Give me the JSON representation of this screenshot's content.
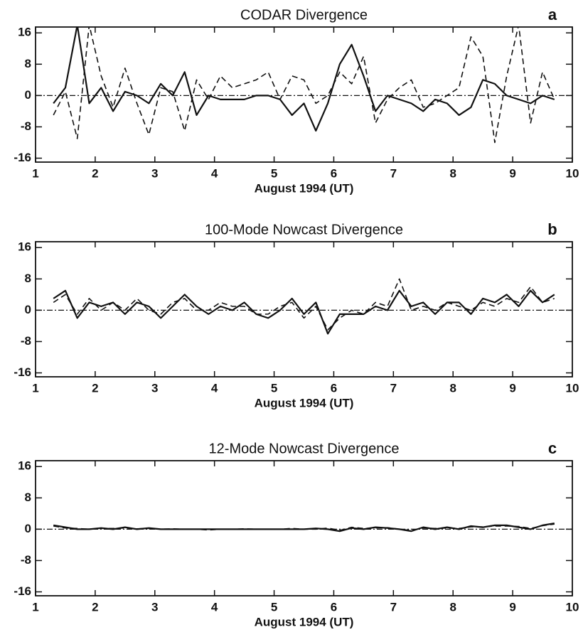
{
  "chart_data": [
    {
      "type": "line",
      "title": "CODAR Divergence",
      "panel_label": "a",
      "x_label": "August 1994 (UT)",
      "xlim": [
        1,
        10
      ],
      "xticks": [
        1,
        2,
        3,
        4,
        5,
        6,
        7,
        8,
        9,
        10
      ],
      "ylim": [
        -17,
        17.5
      ],
      "yticks": [
        16,
        8,
        0,
        -8,
        -16
      ],
      "hline": 0,
      "x": [
        1.3,
        1.5,
        1.7,
        1.9,
        2.1,
        2.3,
        2.5,
        2.7,
        2.9,
        3.1,
        3.3,
        3.5,
        3.7,
        3.9,
        4.1,
        4.3,
        4.5,
        4.7,
        4.9,
        5.1,
        5.3,
        5.5,
        5.7,
        5.9,
        6.1,
        6.3,
        6.5,
        6.7,
        6.9,
        7.1,
        7.3,
        7.5,
        7.7,
        7.9,
        8.1,
        8.3,
        8.5,
        8.7,
        8.9,
        9.1,
        9.3,
        9.5,
        9.7
      ],
      "series": [
        {
          "color": "#111111",
          "style": "solid",
          "values": [
            -2,
            2,
            18,
            -2,
            2,
            -4,
            1,
            0,
            -2,
            3,
            0,
            6,
            -5,
            0,
            -1,
            -1,
            -1,
            0,
            0,
            -1,
            -5,
            -2,
            -9,
            -2,
            8,
            13,
            5,
            -4,
            0,
            -1,
            -2,
            -4,
            -1,
            -2,
            -5,
            -3,
            4,
            3,
            0,
            -1,
            -2,
            0,
            -1
          ]
        },
        {
          "color": "#111111",
          "style": "dashed",
          "values": [
            -5,
            1,
            -11,
            18,
            5,
            -3,
            7,
            -2,
            -10,
            2,
            1,
            -9,
            4,
            -1,
            5,
            2,
            3,
            4,
            6,
            -1,
            5,
            4,
            -2,
            0,
            6,
            3,
            10,
            -7,
            -1,
            2,
            4,
            -3,
            -2,
            0,
            2,
            15,
            10,
            -12,
            5,
            18,
            -7,
            6,
            -1
          ]
        }
      ]
    },
    {
      "type": "line",
      "title": "100-Mode Nowcast Divergence",
      "panel_label": "b",
      "x_label": "August 1994 (UT)",
      "xlim": [
        1,
        10
      ],
      "xticks": [
        1,
        2,
        3,
        4,
        5,
        6,
        7,
        8,
        9,
        10
      ],
      "ylim": [
        -17,
        17.5
      ],
      "yticks": [
        16,
        8,
        0,
        -8,
        -16
      ],
      "hline": 0,
      "x": [
        1.3,
        1.5,
        1.7,
        1.9,
        2.1,
        2.3,
        2.5,
        2.7,
        2.9,
        3.1,
        3.3,
        3.5,
        3.7,
        3.9,
        4.1,
        4.3,
        4.5,
        4.7,
        4.9,
        5.1,
        5.3,
        5.5,
        5.7,
        5.9,
        6.1,
        6.3,
        6.5,
        6.7,
        6.9,
        7.1,
        7.3,
        7.5,
        7.7,
        7.9,
        8.1,
        8.3,
        8.5,
        8.7,
        8.9,
        9.1,
        9.3,
        9.5,
        9.7
      ],
      "series": [
        {
          "color": "#111111",
          "style": "solid",
          "values": [
            3,
            5,
            -2,
            2,
            1,
            2,
            -1,
            2,
            1,
            -2,
            1,
            4,
            1,
            -1,
            1,
            0,
            2,
            -1,
            -2,
            0,
            3,
            -1,
            2,
            -6,
            -1,
            -1,
            -1,
            1,
            0,
            5,
            1,
            2,
            -1,
            2,
            2,
            -1,
            3,
            2,
            4,
            1,
            5,
            2,
            4
          ]
        },
        {
          "color": "#111111",
          "style": "dashed",
          "values": [
            2,
            4,
            -1,
            3,
            0,
            2,
            0,
            3,
            0,
            -1,
            2,
            3,
            0,
            0,
            2,
            1,
            1,
            -1,
            -1,
            1,
            2,
            -2,
            1,
            -5,
            -2,
            0,
            -1,
            2,
            1,
            8,
            0,
            1,
            0,
            2,
            1,
            0,
            2,
            1,
            3,
            2,
            6,
            2,
            3
          ]
        }
      ]
    },
    {
      "type": "line",
      "title": "12-Mode Nowcast Divergence",
      "panel_label": "c",
      "x_label": "August 1994 (UT)",
      "xlim": [
        1,
        10
      ],
      "xticks": [
        1,
        2,
        3,
        4,
        5,
        6,
        7,
        8,
        9,
        10
      ],
      "ylim": [
        -17,
        17.5
      ],
      "yticks": [
        16,
        8,
        0,
        -8,
        -16
      ],
      "hline": 0,
      "x": [
        1.3,
        1.5,
        1.7,
        1.9,
        2.1,
        2.3,
        2.5,
        2.7,
        2.9,
        3.1,
        3.3,
        3.5,
        3.7,
        3.9,
        4.1,
        4.3,
        4.5,
        4.7,
        4.9,
        5.1,
        5.3,
        5.5,
        5.7,
        5.9,
        6.1,
        6.3,
        6.5,
        6.7,
        6.9,
        7.1,
        7.3,
        7.5,
        7.7,
        7.9,
        8.1,
        8.3,
        8.5,
        8.7,
        8.9,
        9.1,
        9.3,
        9.5,
        9.7
      ],
      "series": [
        {
          "color": "#111111",
          "style": "solid",
          "values": [
            1,
            0.5,
            0,
            0,
            0.3,
            0,
            0.5,
            0,
            0.3,
            0,
            0,
            0,
            0,
            0,
            0,
            0,
            0,
            0,
            0,
            0,
            0,
            0,
            0.2,
            0,
            -0.5,
            0.3,
            0,
            0.5,
            0.3,
            0,
            -0.5,
            0.5,
            0,
            0.5,
            0,
            0.8,
            0.5,
            1,
            1,
            0.5,
            0,
            1,
            1.5
          ]
        },
        {
          "color": "#111111",
          "style": "dashed",
          "values": [
            0.8,
            0.3,
            0.2,
            0,
            0.2,
            0.2,
            0.3,
            0.1,
            0.2,
            0,
            0.1,
            0,
            0,
            -0.2,
            0,
            0,
            0.1,
            0,
            0,
            0,
            0.2,
            0,
            0,
            0.3,
            -0.3,
            0.5,
            0.2,
            0.3,
            0.4,
            0,
            -0.3,
            0.3,
            0.2,
            0.3,
            0.2,
            0.6,
            0.6,
            0.8,
            0.8,
            0.7,
            0.2,
            0.9,
            1.3
          ]
        }
      ]
    }
  ]
}
